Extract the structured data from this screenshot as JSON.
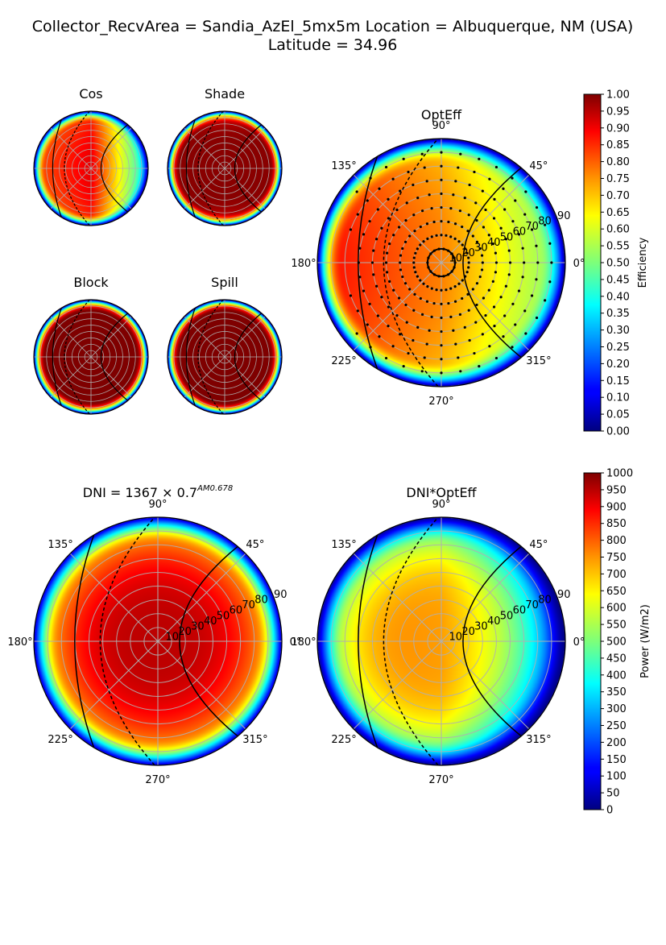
{
  "figure": {
    "title_line1": "Collector_RecvArea = Sandia_AzEl_5mx5m   Location = Albuquerque, NM (USA)",
    "title_line2": "Latitude = 34.96"
  },
  "chart_data": [
    {
      "id": "cos",
      "type": "heatmap",
      "projection": "polar",
      "title": "Cos",
      "colormap": "jet",
      "clim": [
        0,
        1
      ],
      "rmax": 90,
      "angle_ticks": [],
      "radial_ticks": [],
      "model": {
        "kind": "cosine",
        "center_value": 0.9,
        "west_value": 0.8,
        "east_value": 0.42,
        "rim_width": 7
      }
    },
    {
      "id": "shade",
      "type": "heatmap",
      "projection": "polar",
      "title": "Shade",
      "colormap": "jet",
      "clim": [
        0,
        1
      ],
      "rmax": 90,
      "angle_ticks": [],
      "radial_ticks": [],
      "model": {
        "kind": "shade",
        "value": 0.99,
        "dip_value": 0.8,
        "rim_width": 8
      }
    },
    {
      "id": "block",
      "type": "heatmap",
      "projection": "polar",
      "title": "Block",
      "colormap": "jet",
      "clim": [
        0,
        1
      ],
      "rmax": 90,
      "angle_ticks": [],
      "radial_ticks": [],
      "model": {
        "kind": "flat",
        "value": 1.0,
        "rim_width": 8
      }
    },
    {
      "id": "spill",
      "type": "heatmap",
      "projection": "polar",
      "title": "Spill",
      "colormap": "jet",
      "clim": [
        0,
        1
      ],
      "rmax": 90,
      "angle_ticks": [],
      "radial_ticks": [],
      "model": {
        "kind": "flat",
        "value": 1.0,
        "rim_width": 8
      }
    },
    {
      "id": "opteff",
      "type": "heatmap",
      "projection": "polar",
      "title": "OptEff",
      "colormap": "jet",
      "clim": [
        0,
        1
      ],
      "rmax": 90,
      "angle_ticks": [
        "0°",
        "45°",
        "90°",
        "135°",
        "180°",
        "225°",
        "270°",
        "315°"
      ],
      "radial_ticks": [
        "10",
        "20",
        "30",
        "40",
        "50",
        "60",
        "70",
        "80",
        "90"
      ],
      "model": {
        "kind": "opteff",
        "center_value": 0.75,
        "west_value": 0.86,
        "east_value": 0.52,
        "rim_width": 14
      },
      "sample_points": {
        "rings": [
          10,
          20,
          30,
          40,
          50,
          60,
          70,
          80
        ],
        "azimuth_step_deg": 10
      }
    },
    {
      "id": "dni",
      "type": "heatmap",
      "projection": "polar",
      "title": "DNI = 1367 × 0.7",
      "title_superscript": "AM0.678",
      "colormap": "jet",
      "clim": [
        0,
        1000
      ],
      "rmax": 90,
      "angle_ticks": [
        "0°",
        "45°",
        "90°",
        "135°",
        "180°",
        "225°",
        "270°",
        "315°"
      ],
      "radial_ticks": [
        "10",
        "20",
        "30",
        "40",
        "50",
        "60",
        "70",
        "80",
        "90"
      ],
      "model": {
        "kind": "dni",
        "center_value": 940,
        "rim_width": 14
      }
    },
    {
      "id": "dni_opteff",
      "type": "heatmap",
      "projection": "polar",
      "title": "DNI*OptEff",
      "colormap": "jet",
      "clim": [
        0,
        1000
      ],
      "rmax": 90,
      "angle_ticks": [
        "0°",
        "45°",
        "90°",
        "135°",
        "180°",
        "225°",
        "270°",
        "315°"
      ],
      "radial_ticks": [
        "10",
        "20",
        "30",
        "40",
        "50",
        "60",
        "70",
        "80",
        "90"
      ],
      "model": {
        "kind": "dni_opteff",
        "center_value": 720,
        "west_value": 760,
        "east_value": 470,
        "rim_width": 14
      }
    }
  ],
  "colorbars": [
    {
      "id": "eff",
      "label": "Efficiency",
      "colormap": "jet",
      "clim": [
        0,
        1
      ],
      "ticks": [
        "0.00",
        "0.05",
        "0.10",
        "0.15",
        "0.20",
        "0.25",
        "0.30",
        "0.35",
        "0.40",
        "0.45",
        "0.50",
        "0.55",
        "0.60",
        "0.65",
        "0.70",
        "0.75",
        "0.80",
        "0.85",
        "0.90",
        "0.95",
        "1.00"
      ]
    },
    {
      "id": "power",
      "label": "Power (W/m2)",
      "colormap": "jet",
      "clim": [
        0,
        1000
      ],
      "ticks": [
        "0",
        "50",
        "100",
        "150",
        "200",
        "250",
        "300",
        "350",
        "400",
        "450",
        "500",
        "550",
        "600",
        "650",
        "700",
        "750",
        "800",
        "850",
        "900",
        "950",
        "1000"
      ]
    }
  ]
}
